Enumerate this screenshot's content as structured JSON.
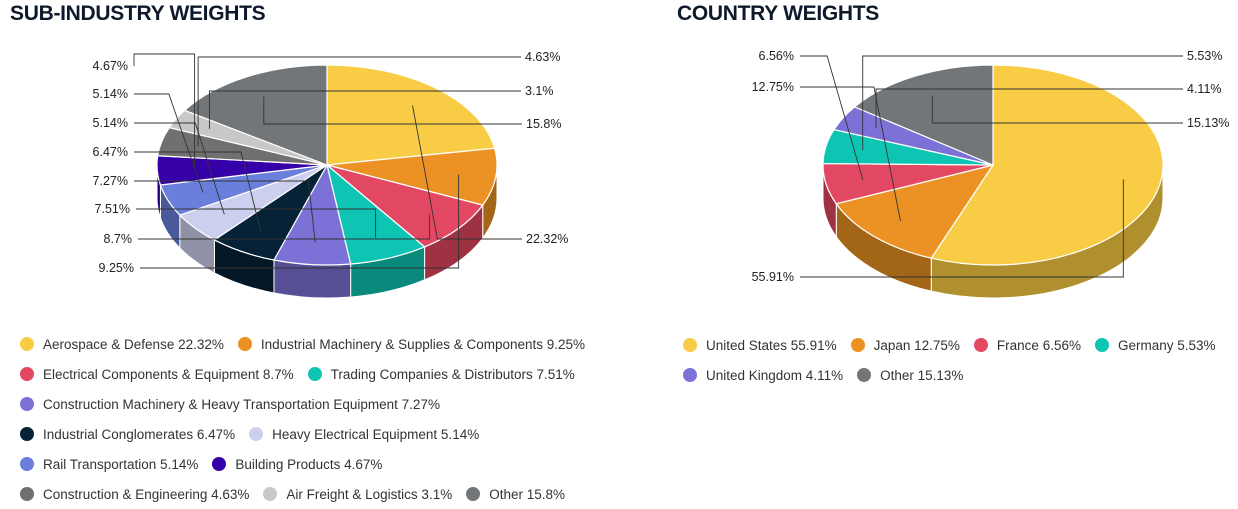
{
  "chart_data": [
    {
      "type": "pie",
      "title": "SUB-INDUSTRY WEIGHTS",
      "slices": [
        {
          "label": "Aerospace & Defense",
          "value": 22.32,
          "display": "22.32%",
          "color": "#f9cc45",
          "side": "#b08f2f"
        },
        {
          "label": "Industrial Machinery & Supplies & Components",
          "value": 9.25,
          "display": "9.25%",
          "color": "#ec9224",
          "side": "#a36516"
        },
        {
          "label": "Electrical Components & Equipment",
          "value": 8.7,
          "display": "8.7%",
          "color": "#e34862",
          "side": "#9e3142"
        },
        {
          "label": "Trading Companies & Distributors",
          "value": 7.51,
          "display": "7.51%",
          "color": "#0ec5b4",
          "side": "#0a897d"
        },
        {
          "label": "Construction Machinery & Heavy Transportation Equipment",
          "value": 7.27,
          "display": "7.27%",
          "color": "#7b71d6",
          "side": "#564f96"
        },
        {
          "label": "Industrial Conglomerates",
          "value": 6.47,
          "display": "6.47%",
          "color": "#052236",
          "side": "#031726"
        },
        {
          "label": "Heavy Electrical Equipment",
          "value": 5.14,
          "display": "5.14%",
          "color": "#ccd0ee",
          "side": "#8f92a7"
        },
        {
          "label": "Rail Transportation",
          "value": 5.14,
          "display": "5.14%",
          "color": "#6a7fdb",
          "side": "#4a5999"
        },
        {
          "label": "Building Products",
          "value": 4.67,
          "display": "4.67%",
          "color": "#3500a8",
          "side": "#250076"
        },
        {
          "label": "Construction & Engineering",
          "value": 4.63,
          "display": "4.63%",
          "color": "#707070",
          "side": "#4e4e4e"
        },
        {
          "label": "Air Freight & Logistics",
          "value": 3.1,
          "display": "3.1%",
          "color": "#c8c8c8",
          "side": "#8c8c8c"
        },
        {
          "label": "Other",
          "value": 15.8,
          "display": "15.8%",
          "color": "#727679",
          "side": "#505355"
        }
      ],
      "legend_rows": [
        [
          0,
          1
        ],
        [
          2,
          3
        ],
        [
          4
        ],
        [
          5,
          6
        ],
        [
          7,
          8
        ],
        [
          9,
          10,
          11
        ]
      ],
      "legend_placement": "bottom"
    },
    {
      "type": "pie",
      "title": "COUNTRY WEIGHTS",
      "slices": [
        {
          "label": "United States",
          "value": 55.91,
          "display": "55.91%",
          "color": "#f9cc45",
          "side": "#b08f2f"
        },
        {
          "label": "Japan",
          "value": 12.75,
          "display": "12.75%",
          "color": "#ec9224",
          "side": "#a36516"
        },
        {
          "label": "France",
          "value": 6.56,
          "display": "6.56%",
          "color": "#e34862",
          "side": "#9e3142"
        },
        {
          "label": "Germany",
          "value": 5.53,
          "display": "5.53%",
          "color": "#0ec5b4",
          "side": "#0a897d"
        },
        {
          "label": "United Kingdom",
          "value": 4.11,
          "display": "4.11%",
          "color": "#7b71d6",
          "side": "#564f96"
        },
        {
          "label": "Other",
          "value": 15.13,
          "display": "15.13%",
          "color": "#727679",
          "side": "#505355"
        }
      ],
      "legend_rows": [
        [
          0,
          1,
          2,
          3
        ],
        [
          4,
          5
        ]
      ],
      "legend_placement": "bottom"
    }
  ]
}
